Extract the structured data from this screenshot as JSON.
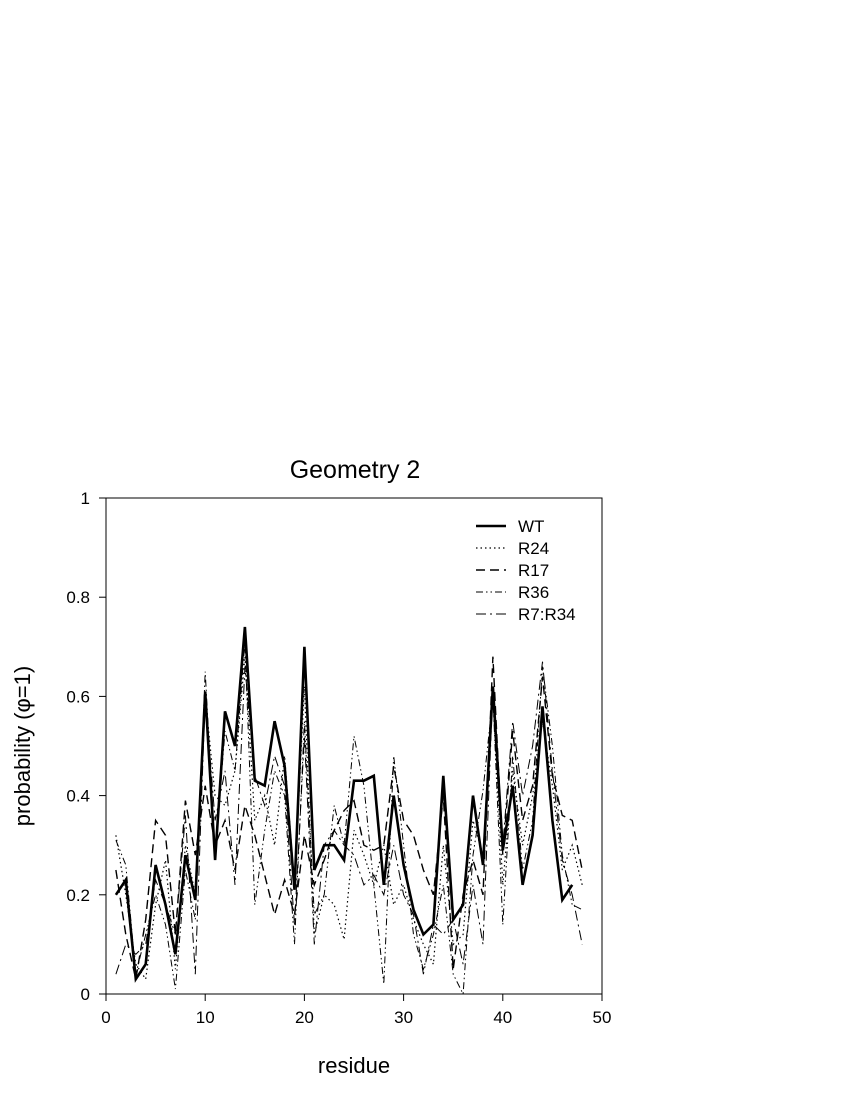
{
  "chart_data": {
    "type": "line",
    "title": "Geometry 2",
    "xlabel": "residue",
    "ylabel": "probability (φ=1)",
    "xlim": [
      0,
      50
    ],
    "ylim": [
      0,
      1
    ],
    "xticks": [
      0,
      10,
      20,
      30,
      40,
      50
    ],
    "yticks": [
      0,
      0.2,
      0.4,
      0.6,
      0.8,
      1
    ],
    "ytick_labels": [
      "0",
      "0.2",
      "0.4",
      "0.6",
      "0.8",
      "1"
    ],
    "grid": false,
    "legend_position": "top-right",
    "series": [
      {
        "name": "WT",
        "style": "solid-thick",
        "x": [
          1,
          2,
          3,
          4,
          5,
          6,
          7,
          8,
          9,
          10,
          11,
          12,
          13,
          14,
          15,
          16,
          17,
          18,
          19,
          20,
          21,
          22,
          23,
          24,
          25,
          26,
          27,
          28,
          29,
          30,
          31,
          32,
          33,
          34,
          35,
          36,
          37,
          38,
          39,
          40,
          41,
          42,
          43,
          44,
          45,
          46,
          47
        ],
        "y": [
          0.2,
          0.23,
          0.03,
          0.06,
          0.26,
          0.18,
          0.08,
          0.28,
          0.19,
          0.61,
          0.27,
          0.57,
          0.5,
          0.74,
          0.43,
          0.42,
          0.55,
          0.46,
          0.21,
          0.7,
          0.25,
          0.3,
          0.3,
          0.27,
          0.43,
          0.43,
          0.44,
          0.22,
          0.4,
          0.26,
          0.17,
          0.12,
          0.14,
          0.44,
          0.15,
          0.18,
          0.4,
          0.26,
          0.62,
          0.29,
          0.42,
          0.22,
          0.32,
          0.58,
          0.35,
          0.19,
          0.22
        ]
      },
      {
        "name": "R24",
        "style": "dotted",
        "x": [
          1,
          2,
          3,
          4,
          5,
          6,
          7,
          8,
          9,
          10,
          11,
          12,
          13,
          14,
          15,
          16,
          17,
          18,
          19,
          20,
          21,
          22,
          23,
          24,
          25,
          26,
          27,
          28,
          29,
          30,
          31,
          32,
          33,
          34,
          35,
          36,
          37,
          38,
          39,
          40,
          41,
          42,
          43,
          44,
          45,
          46,
          47,
          48
        ],
        "y": [
          0.32,
          0.2,
          0.06,
          0.03,
          0.18,
          0.27,
          0.05,
          0.3,
          0.2,
          0.6,
          0.4,
          0.38,
          0.45,
          0.68,
          0.35,
          0.4,
          0.3,
          0.48,
          0.22,
          0.62,
          0.12,
          0.2,
          0.18,
          0.11,
          0.33,
          0.28,
          0.22,
          0.3,
          0.18,
          0.22,
          0.15,
          0.1,
          0.06,
          0.3,
          0.1,
          0.12,
          0.35,
          0.28,
          0.6,
          0.22,
          0.45,
          0.3,
          0.4,
          0.55,
          0.42,
          0.25,
          0.3,
          0.22
        ]
      },
      {
        "name": "R17",
        "style": "dashed",
        "x": [
          1,
          2,
          3,
          4,
          5,
          6,
          7,
          8,
          9,
          10,
          11,
          12,
          13,
          14,
          15,
          16,
          17,
          18,
          19,
          20,
          21,
          22,
          23,
          24,
          25,
          26,
          27,
          28,
          29,
          30,
          31,
          32,
          33,
          34,
          35,
          36,
          37,
          38,
          39,
          40,
          41,
          42,
          43,
          44,
          45,
          46,
          47,
          48
        ],
        "y": [
          0.25,
          0.12,
          0.03,
          0.15,
          0.35,
          0.32,
          0.12,
          0.39,
          0.28,
          0.42,
          0.3,
          0.35,
          0.25,
          0.38,
          0.32,
          0.24,
          0.16,
          0.23,
          0.16,
          0.32,
          0.22,
          0.27,
          0.33,
          0.37,
          0.39,
          0.3,
          0.29,
          0.3,
          0.46,
          0.35,
          0.32,
          0.25,
          0.2,
          0.4,
          0.05,
          0.2,
          0.27,
          0.2,
          0.68,
          0.28,
          0.53,
          0.35,
          0.42,
          0.64,
          0.44,
          0.36,
          0.35,
          0.25
        ]
      },
      {
        "name": "R36",
        "style": "dash-dot-dot",
        "x": [
          1,
          2,
          3,
          4,
          5,
          6,
          7,
          8,
          9,
          10,
          11,
          12,
          13,
          14,
          15,
          16,
          17,
          18,
          19,
          20,
          21,
          22,
          23,
          24,
          25,
          26,
          27,
          28,
          29,
          30,
          31,
          32,
          33,
          34,
          35,
          36,
          37,
          38,
          39,
          40,
          41,
          42,
          43,
          44,
          45,
          46,
          47,
          48
        ],
        "y": [
          0.31,
          0.26,
          0.04,
          0.12,
          0.2,
          0.14,
          0.01,
          0.25,
          0.15,
          0.65,
          0.28,
          0.53,
          0.45,
          0.71,
          0.18,
          0.33,
          0.45,
          0.4,
          0.1,
          0.55,
          0.16,
          0.2,
          0.38,
          0.3,
          0.52,
          0.42,
          0.22,
          0.02,
          0.48,
          0.3,
          0.12,
          0.05,
          0.12,
          0.22,
          0.04,
          0.0,
          0.28,
          0.41,
          0.6,
          0.14,
          0.48,
          0.25,
          0.35,
          0.66,
          0.5,
          0.28,
          0.18,
          0.17
        ]
      },
      {
        "name": "R7:R34",
        "style": "dash-dot",
        "x": [
          1,
          2,
          3,
          4,
          5,
          6,
          7,
          8,
          9,
          10,
          11,
          12,
          13,
          14,
          15,
          16,
          17,
          18,
          19,
          20,
          21,
          22,
          23,
          24,
          25,
          26,
          27,
          28,
          29,
          30,
          31,
          32,
          33,
          34,
          35,
          36,
          37,
          38,
          39,
          40,
          41,
          42,
          43,
          44,
          45,
          46,
          47,
          48
        ],
        "y": [
          0.04,
          0.1,
          0.08,
          0.1,
          0.23,
          0.18,
          0.12,
          0.36,
          0.04,
          0.6,
          0.35,
          0.45,
          0.22,
          0.66,
          0.44,
          0.38,
          0.48,
          0.42,
          0.14,
          0.52,
          0.1,
          0.3,
          0.33,
          0.3,
          0.28,
          0.22,
          0.24,
          0.2,
          0.3,
          0.2,
          0.16,
          0.04,
          0.14,
          0.12,
          0.15,
          0.06,
          0.22,
          0.1,
          0.62,
          0.3,
          0.55,
          0.4,
          0.5,
          0.67,
          0.45,
          0.27,
          0.2,
          0.1
        ]
      }
    ]
  }
}
